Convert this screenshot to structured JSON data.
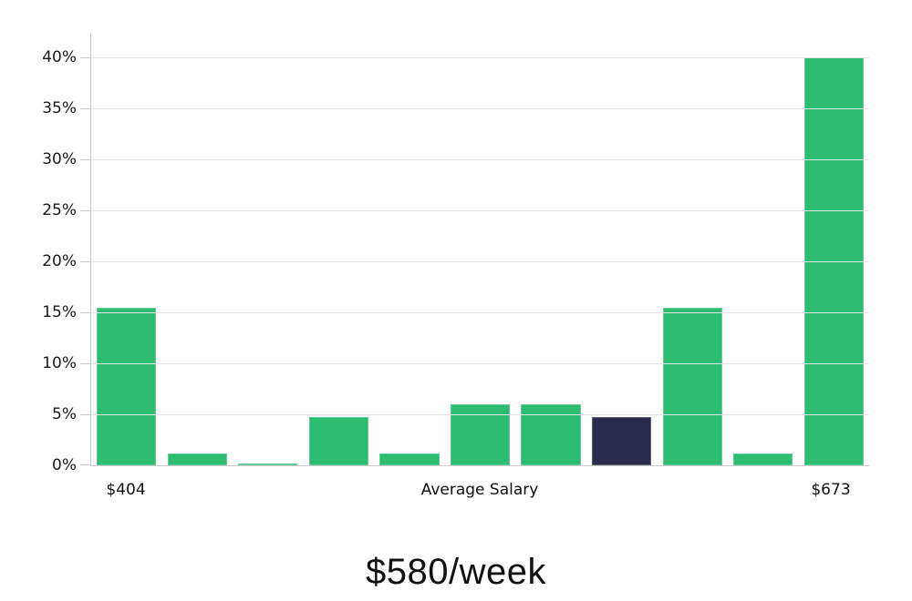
{
  "chart_data": {
    "type": "bar",
    "title": "",
    "caption": "$580/week",
    "xlabel": "Average Salary",
    "ylabel": "",
    "x_axis_labels": {
      "min": "$404",
      "mid": "Average Salary",
      "max": "$673"
    },
    "y_tick_labels": [
      "0%",
      "5%",
      "10%",
      "15%",
      "20%",
      "25%",
      "30%",
      "35%",
      "40%"
    ],
    "y_tick_values": [
      0,
      5,
      10,
      15,
      20,
      25,
      30,
      35,
      40
    ],
    "ylim": [
      0,
      42.3
    ],
    "grid": true,
    "legend": "none",
    "categories": [
      "$404",
      "",
      "",
      "",
      "",
      "",
      "",
      "",
      "",
      "",
      "$673"
    ],
    "values": [
      15.4,
      1.2,
      0.15,
      4.7,
      1.2,
      6.0,
      6.0,
      4.7,
      15.4,
      1.2,
      40.0
    ],
    "highlight_index": 7,
    "colors": {
      "bar": "#2dbd71",
      "highlight_bar": "#2a2a4d",
      "gridline": "#e4e4e4",
      "axis": "#c9c9c9",
      "text": "#1a1a1a"
    }
  }
}
